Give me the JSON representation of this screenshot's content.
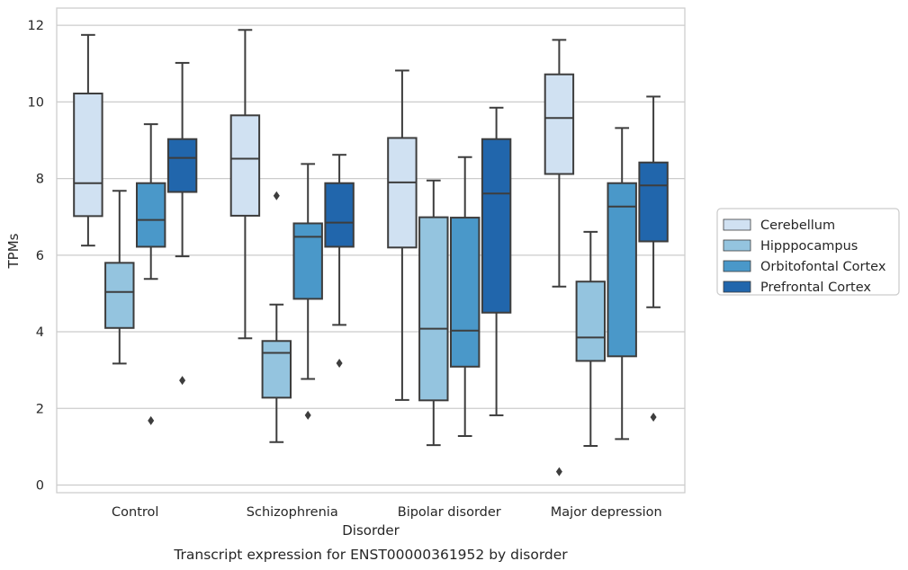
{
  "chart_data": {
    "type": "box",
    "title": "",
    "caption": "Transcript expression for ENST00000361952 by disorder",
    "xlabel": "Disorder",
    "ylabel": "TPMs",
    "categories": [
      "Control",
      "Schizophrenia",
      "Bipolar disorder",
      "Major depression"
    ],
    "ylim": [
      -0.2,
      12.45
    ],
    "yticks": [
      "0",
      "2",
      "4",
      "6",
      "8",
      "10",
      "12"
    ],
    "grid": "horizontal",
    "legend_position": "right",
    "series": [
      {
        "name": "Cerebellum",
        "color": "#d0e1f2",
        "boxes": [
          {
            "min": 6.25,
            "q1": 7.02,
            "median": 7.88,
            "q3": 10.22,
            "max": 11.75,
            "outliers": []
          },
          {
            "min": 3.83,
            "q1": 7.03,
            "median": 8.52,
            "q3": 9.65,
            "max": 11.88,
            "outliers": []
          },
          {
            "min": 2.22,
            "q1": 6.2,
            "median": 7.9,
            "q3": 9.06,
            "max": 10.82,
            "outliers": []
          },
          {
            "min": 5.18,
            "q1": 8.12,
            "median": 9.58,
            "q3": 10.72,
            "max": 11.62,
            "outliers": [
              0.35
            ]
          }
        ]
      },
      {
        "name": "Hipppocampus",
        "color": "#94c4df",
        "boxes": [
          {
            "min": 3.17,
            "q1": 4.1,
            "median": 5.04,
            "q3": 5.8,
            "max": 7.68,
            "outliers": []
          },
          {
            "min": 1.12,
            "q1": 2.28,
            "median": 3.45,
            "q3": 3.76,
            "max": 4.71,
            "outliers": [
              7.55
            ]
          },
          {
            "min": 1.04,
            "q1": 2.21,
            "median": 4.08,
            "q3": 6.99,
            "max": 7.95,
            "outliers": []
          },
          {
            "min": 1.02,
            "q1": 3.24,
            "median": 3.85,
            "q3": 5.31,
            "max": 6.61,
            "outliers": []
          }
        ]
      },
      {
        "name": "Orbitofontal Cortex",
        "color": "#4a98c9",
        "boxes": [
          {
            "min": 5.38,
            "q1": 6.22,
            "median": 6.92,
            "q3": 7.88,
            "max": 9.42,
            "outliers": [
              1.68
            ]
          },
          {
            "min": 2.77,
            "q1": 4.86,
            "median": 6.48,
            "q3": 6.83,
            "max": 8.38,
            "outliers": [
              1.82
            ]
          },
          {
            "min": 1.28,
            "q1": 3.09,
            "median": 4.03,
            "q3": 6.98,
            "max": 8.56,
            "outliers": []
          },
          {
            "min": 1.2,
            "q1": 3.36,
            "median": 7.27,
            "q3": 7.88,
            "max": 9.32,
            "outliers": []
          }
        ]
      },
      {
        "name": "Prefrontal Cortex",
        "color": "#2166ac",
        "boxes": [
          {
            "min": 5.97,
            "q1": 7.65,
            "median": 8.54,
            "q3": 9.03,
            "max": 11.02,
            "outliers": [
              2.73
            ]
          },
          {
            "min": 4.18,
            "q1": 6.22,
            "median": 6.85,
            "q3": 7.88,
            "max": 8.62,
            "outliers": [
              3.18
            ]
          },
          {
            "min": 1.82,
            "q1": 4.5,
            "median": 7.61,
            "q3": 9.03,
            "max": 9.85,
            "outliers": []
          },
          {
            "min": 4.64,
            "q1": 6.36,
            "median": 7.82,
            "q3": 8.42,
            "max": 10.14,
            "outliers": [
              1.77
            ]
          }
        ]
      }
    ]
  }
}
